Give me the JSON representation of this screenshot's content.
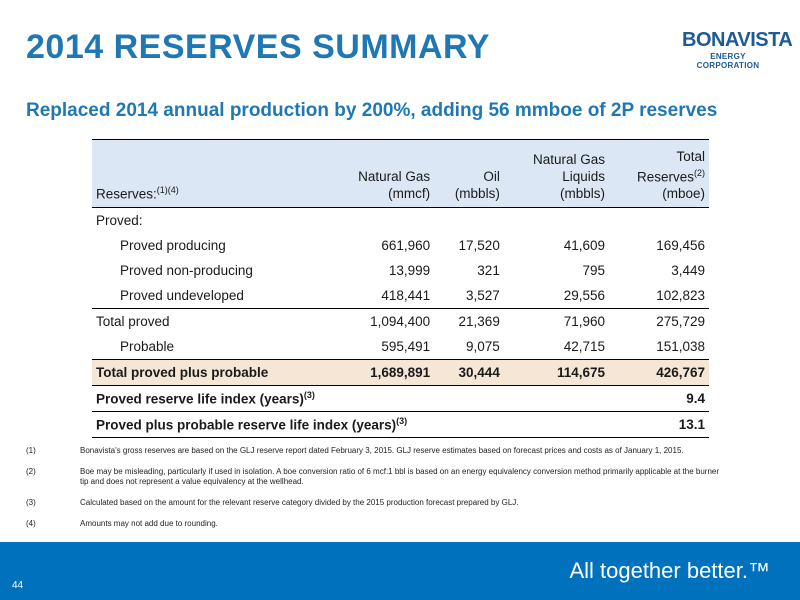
{
  "title": "2014 RESERVES SUMMARY",
  "logo": {
    "brand": "BONAVISTA",
    "sub": "ENERGY CORPORATION"
  },
  "subtitle": "Replaced 2014 annual production by 200%, adding 56 mmboe of 2P reserves",
  "table": {
    "header": {
      "label": "Reserves:",
      "label_sup": "(1)(4)",
      "col1": [
        "Natural Gas",
        "(mmcf)"
      ],
      "col2": [
        "Oil",
        "(mbbls)"
      ],
      "col3": [
        "Natural Gas",
        "Liquids",
        "(mbbls)"
      ],
      "col4": [
        "Total",
        "Reserves",
        "(mboe)"
      ],
      "col4_sup": "(2)"
    },
    "section": "Proved:",
    "rows": [
      {
        "label": "Proved producing",
        "v": [
          "661,960",
          "17,520",
          "41,609",
          "169,456"
        ]
      },
      {
        "label": "Proved non-producing",
        "v": [
          "13,999",
          "321",
          "795",
          "3,449"
        ]
      },
      {
        "label": "Proved undeveloped",
        "v": [
          "418,441",
          "3,527",
          "29,556",
          "102,823"
        ]
      },
      {
        "label": "Total proved",
        "v": [
          "1,094,400",
          "21,369",
          "71,960",
          "275,729"
        ]
      },
      {
        "label": "Probable",
        "v": [
          "595,491",
          "9,075",
          "42,715",
          "151,038"
        ]
      },
      {
        "label": "Total proved plus probable",
        "v": [
          "1,689,891",
          "30,444",
          "114,675",
          "426,767"
        ]
      }
    ],
    "rli": [
      {
        "label": "Proved reserve life index (years)",
        "sup": "(3)",
        "value": "9.4"
      },
      {
        "label": "Proved plus probable reserve life index (years)",
        "sup": "(3)",
        "value": "13.1"
      }
    ]
  },
  "notes": [
    {
      "mark": "(1)",
      "text": "Bonavista's gross reserves are based on the GLJ reserve report dated February 3, 2015. GLJ reserve estimates based on forecast prices and costs as of January 1, 2015."
    },
    {
      "mark": "(2)",
      "text": "Boe may be misleading, particularly if used in isolation. A boe conversion ratio of 6 mcf:1 bbl is based on an energy equivalency conversion method primarily applicable at the burner tip and does not represent a value equivalency at the wellhead."
    },
    {
      "mark": "(3)",
      "text": "Calculated based on the amount for the relevant reserve category divided by the 2015 production forecast prepared by GLJ."
    },
    {
      "mark": "(4)",
      "text": "Amounts may not add due to rounding."
    }
  ],
  "footer": {
    "tagline": "All together better.™",
    "page": "44"
  },
  "colors": {
    "accent": "#1f78b4",
    "footer": "#0071bc",
    "header_fill": "#dbe7f5",
    "total_fill": "#f5e6d6"
  }
}
